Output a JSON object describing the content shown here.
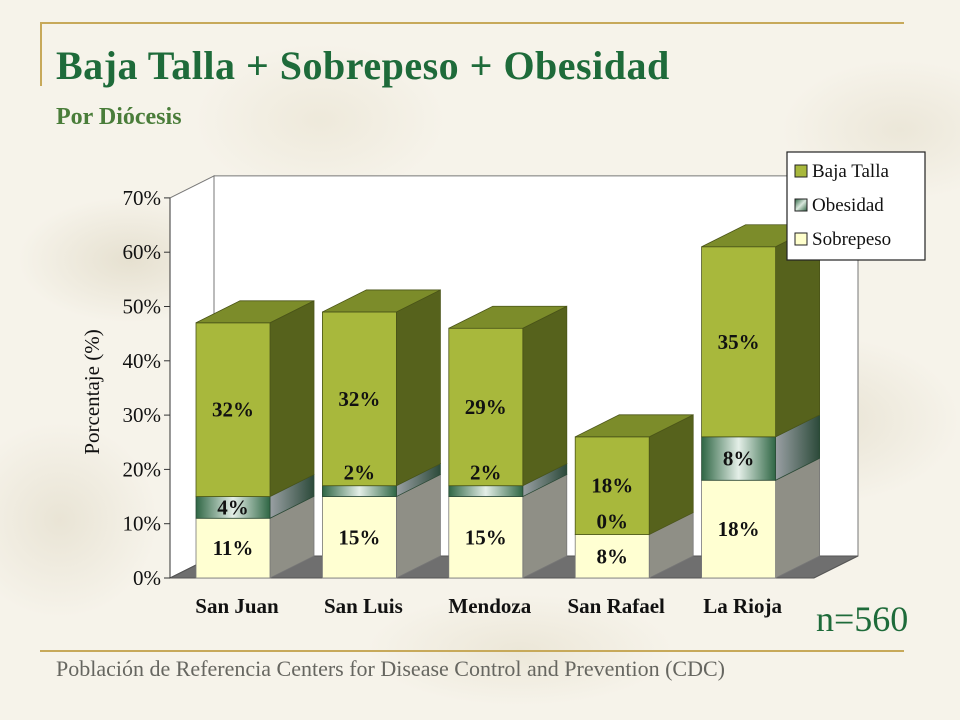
{
  "title": "Baja Talla + Sobrepeso + Obesidad",
  "subtitle": "Por Diócesis",
  "footer": "Población de Referencia Centers for Disease Control and Prevention (CDC)",
  "sample_size": "n=560",
  "colors": {
    "title": "#1e6b3a",
    "baja_talla": "#a8b83c",
    "obesidad": "#3f7a52",
    "sobrepeso": "#ffffcc",
    "frame": "#c7a95a"
  },
  "chart_data": {
    "type": "bar",
    "stacked": true,
    "three_d": true,
    "ylabel": "Porcentaje (%)",
    "ylim": [
      0,
      70
    ],
    "yticks": [
      "0%",
      "10%",
      "20%",
      "30%",
      "40%",
      "50%",
      "60%",
      "70%"
    ],
    "categories": [
      "San Juan",
      "San Luis",
      "Mendoza",
      "San Rafael",
      "La Rioja"
    ],
    "series": [
      {
        "name": "Sobrepeso",
        "values": [
          11,
          15,
          15,
          8,
          18
        ],
        "labels": [
          "11%",
          "15%",
          "15%",
          "8%",
          "18%"
        ]
      },
      {
        "name": "Obesidad",
        "values": [
          4,
          2,
          2,
          0,
          8
        ],
        "labels": [
          "4%",
          "2%",
          "2%",
          "0%",
          "8%"
        ]
      },
      {
        "name": "Baja Talla",
        "values": [
          32,
          32,
          29,
          18,
          35
        ],
        "labels": [
          "32%",
          "32%",
          "29%",
          "18%",
          "35%"
        ]
      }
    ],
    "legend": {
      "placement": "top-right",
      "entries": [
        "Baja Talla",
        "Obesidad",
        "Sobrepeso"
      ]
    }
  }
}
